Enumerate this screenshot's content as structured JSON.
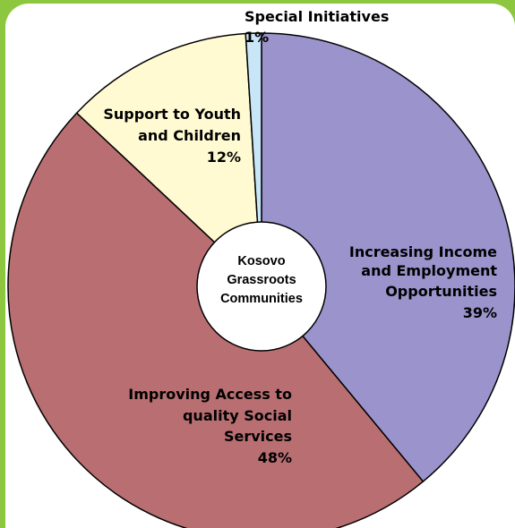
{
  "chart_data": {
    "type": "pie",
    "title": "",
    "center_label": [
      "Kosovo",
      "Grassroots",
      "Communities"
    ],
    "slices": [
      {
        "name": "Increasing Income and Employment Opportunities",
        "label_lines": [
          "Increasing Income",
          "and Employment",
          "Opportunities"
        ],
        "value": 39,
        "value_label": "39%",
        "color": "#9b93cc"
      },
      {
        "name": "Improving Access to quality Social Services",
        "label_lines": [
          "Improving Access to",
          "quality Social",
          "Services"
        ],
        "value": 48,
        "value_label": "48%",
        "color": "#b96f72"
      },
      {
        "name": "Support to Youth and Children",
        "label_lines": [
          "Support to Youth",
          "and Children"
        ],
        "value": 12,
        "value_label": "12%",
        "color": "#fffad2"
      },
      {
        "name": "Special Initiatives",
        "label_lines": [
          "Special Initiatives"
        ],
        "value": 1,
        "value_label": "1%",
        "color": "#c8e6f7"
      }
    ],
    "legend": "none",
    "border_color": "#000000"
  },
  "colors": {
    "frame": "#8dc63f",
    "panel": "#ffffff"
  }
}
